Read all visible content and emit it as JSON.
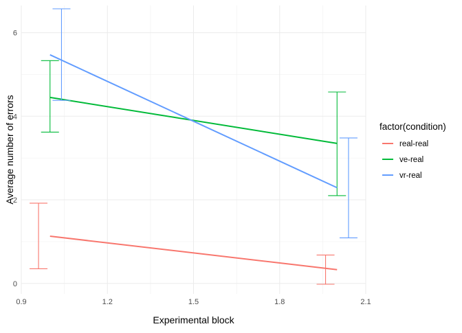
{
  "chart_data": {
    "type": "line",
    "xlabel": "Experimental block",
    "ylabel": "Average number of errors",
    "xlim": [
      0.9,
      2.1
    ],
    "ylim": [
      -0.25,
      6.65
    ],
    "x_ticks": [
      0.9,
      1.2,
      1.5,
      1.8,
      2.1
    ],
    "x_tick_labels": [
      "0.9",
      "1.2",
      "1.5",
      "1.8",
      "2.1"
    ],
    "y_ticks": [
      0,
      2,
      4,
      6
    ],
    "y_tick_labels": [
      "0",
      "2",
      "4",
      "6"
    ],
    "grid": true,
    "legend_title": "factor(condition)",
    "legend_position": "right",
    "series": [
      {
        "name": "real-real",
        "color": "#F8766D",
        "x": [
          1,
          2
        ],
        "y": [
          1.13,
          0.33
        ],
        "errorbars": [
          {
            "x": 0.96,
            "ymin": 0.35,
            "ymax": 1.92
          },
          {
            "x": 1.96,
            "ymin": -0.02,
            "ymax": 0.68
          }
        ]
      },
      {
        "name": "ve-real",
        "color": "#00BA38",
        "x": [
          1,
          2
        ],
        "y": [
          4.45,
          3.35
        ],
        "errorbars": [
          {
            "x": 1.0,
            "ymin": 3.62,
            "ymax": 5.33
          },
          {
            "x": 2.0,
            "ymin": 2.1,
            "ymax": 4.58
          }
        ]
      },
      {
        "name": "vr-real",
        "color": "#619CFF",
        "x": [
          1,
          2
        ],
        "y": [
          5.47,
          2.29
        ],
        "errorbars": [
          {
            "x": 1.04,
            "ymin": 4.38,
            "ymax": 6.57
          },
          {
            "x": 2.04,
            "ymin": 1.09,
            "ymax": 3.48
          }
        ]
      }
    ]
  }
}
